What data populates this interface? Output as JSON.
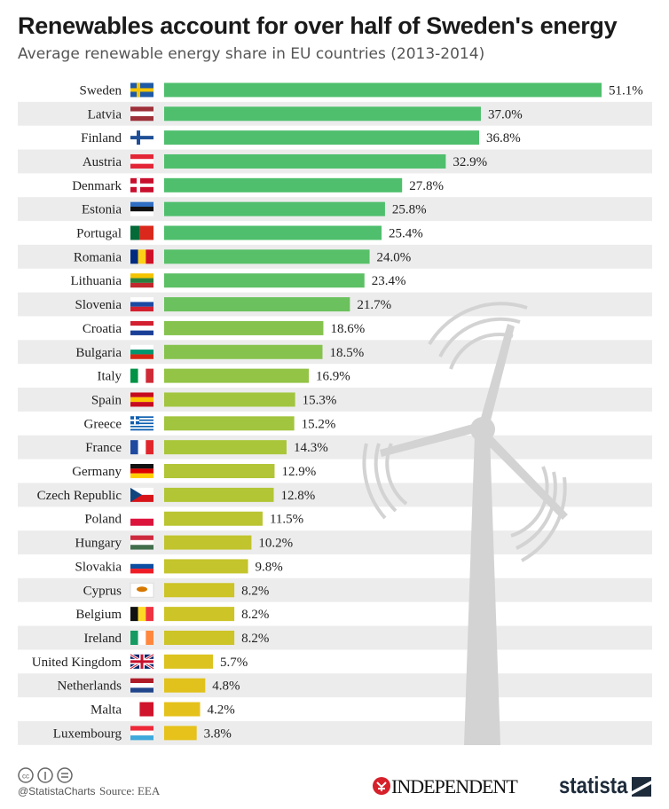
{
  "title": "Renewables account for over half of Sweden's energy",
  "subtitle": "Average renewable energy share in EU countries (2013-2014)",
  "footer": {
    "handle": "@StatistaCharts",
    "source": "Source: EEA",
    "license_icons": [
      "cc-icon",
      "by-icon",
      "nd-icon"
    ],
    "partner_logo": "INDEPENDENT",
    "brand_logo": "statista"
  },
  "colors": {
    "top": "#4fbf6d",
    "mid": "#a9c63a",
    "bottom": "#e6c21a",
    "stripe": "#ececec",
    "windmill": "#d3d3d3"
  },
  "chart_data": {
    "type": "bar",
    "orientation": "horizontal",
    "title": "Renewables account for over half of Sweden's energy",
    "subtitle": "Average renewable energy share in EU countries (2013-2014)",
    "unit": "%",
    "categories": [
      "Sweden",
      "Latvia",
      "Finland",
      "Austria",
      "Denmark",
      "Estonia",
      "Portugal",
      "Romania",
      "Lithuania",
      "Slovenia",
      "Croatia",
      "Bulgaria",
      "Italy",
      "Spain",
      "Greece",
      "France",
      "Germany",
      "Czech Republic",
      "Poland",
      "Hungary",
      "Slovakia",
      "Cyprus",
      "Belgium",
      "Ireland",
      "United Kingdom",
      "Netherlands",
      "Malta",
      "Luxembourg"
    ],
    "values": [
      51.1,
      37.0,
      36.8,
      32.9,
      27.8,
      25.8,
      25.4,
      24.0,
      23.4,
      21.7,
      18.6,
      18.5,
      16.9,
      15.3,
      15.2,
      14.3,
      12.9,
      12.8,
      11.5,
      10.2,
      9.8,
      8.2,
      8.2,
      8.2,
      5.7,
      4.8,
      4.2,
      3.8
    ],
    "labels": [
      "51.1%",
      "37.0%",
      "36.8%",
      "32.9%",
      "27.8%",
      "25.8%",
      "25.4%",
      "24.0%",
      "23.4%",
      "21.7%",
      "18.6%",
      "18.5%",
      "16.9%",
      "15.3%",
      "15.2%",
      "14.3%",
      "12.9%",
      "12.8%",
      "11.5%",
      "10.2%",
      "9.8%",
      "8.2%",
      "8.2%",
      "8.2%",
      "5.7%",
      "4.8%",
      "4.2%",
      "3.8%"
    ],
    "flags": [
      "se",
      "lv",
      "fi",
      "at",
      "dk",
      "ee",
      "pt",
      "ro",
      "lt",
      "si",
      "hr",
      "bg",
      "it",
      "es",
      "gr",
      "fr",
      "de",
      "cz",
      "pl",
      "hu",
      "sk",
      "cy",
      "be",
      "ie",
      "gb",
      "nl",
      "mt",
      "lu"
    ],
    "xlim": [
      0,
      51.1
    ],
    "grid": false,
    "legend": "none"
  }
}
